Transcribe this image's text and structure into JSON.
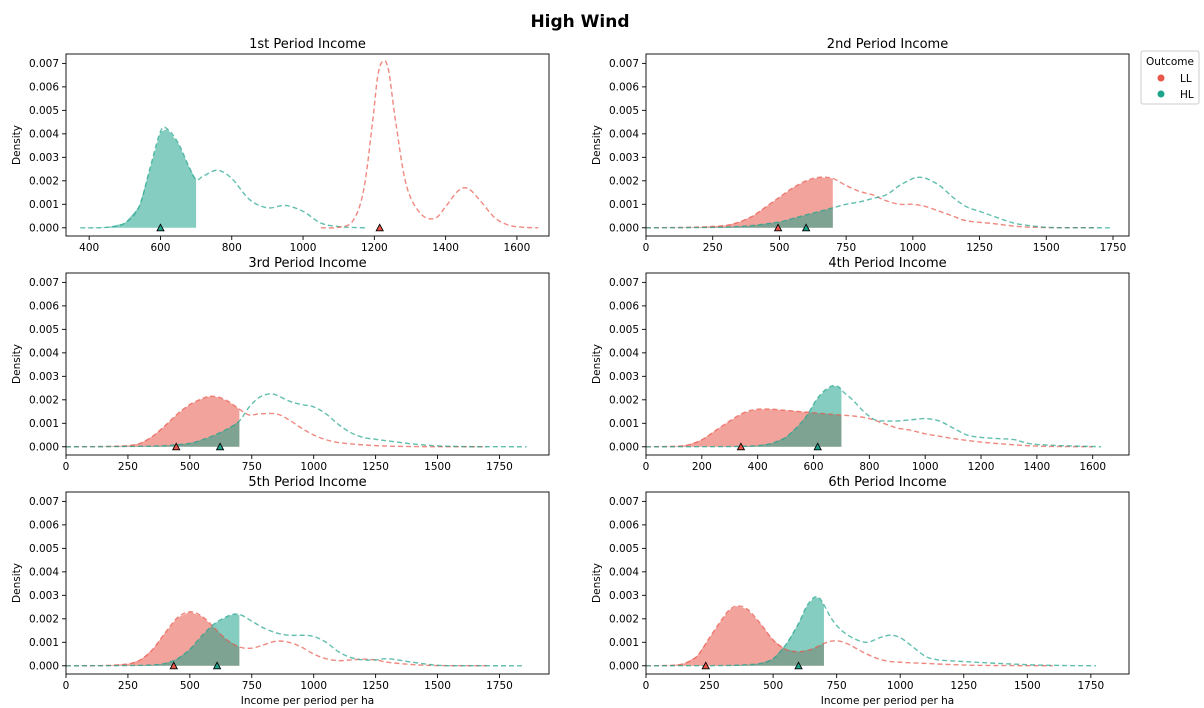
{
  "title": "High Wind",
  "legend": {
    "title": "Outcome",
    "placement": "outside upper-right",
    "items": [
      {
        "label": "LL",
        "color": "#e8574a"
      },
      {
        "label": "HL",
        "color": "#1fa48c"
      }
    ]
  },
  "colors": {
    "LL": "#e8574a",
    "HL": "#1fa48c"
  },
  "chart_data": [
    {
      "type": "area",
      "title": "1st Period Income",
      "xlabel": "",
      "ylabel": "Density",
      "xlim": [
        335,
        1690
      ],
      "ylim": [
        -0.00035,
        0.0074
      ],
      "xticks": [
        400,
        600,
        800,
        1000,
        1200,
        1400,
        1600
      ],
      "yticks": [
        "0.000",
        "0.001",
        "0.002",
        "0.003",
        "0.004",
        "0.005",
        "0.006",
        "0.007"
      ],
      "fill_below": 700,
      "series": [
        {
          "name": "HL",
          "x": [
            375,
            450,
            500,
            540,
            570,
            600,
            620,
            650,
            680,
            700,
            720,
            760,
            800,
            850,
            900,
            950,
            1000,
            1050,
            1100,
            1150,
            1180
          ],
          "y": [
            0,
            2e-05,
            0.0002,
            0.0009,
            0.0025,
            0.0041,
            0.0042,
            0.0036,
            0.0026,
            0.00205,
            0.0022,
            0.00245,
            0.0021,
            0.0012,
            0.00085,
            0.00095,
            0.0007,
            0.0002,
            5e-05,
            1e-05,
            0
          ],
          "marker_x": 600
        },
        {
          "name": "LL",
          "x": [
            1050,
            1100,
            1140,
            1170,
            1195,
            1210,
            1225,
            1240,
            1260,
            1290,
            1330,
            1370,
            1400,
            1430,
            1450,
            1470,
            1500,
            1540,
            1580,
            1620,
            1660
          ],
          "y": [
            0,
            2e-05,
            0.0003,
            0.0016,
            0.0045,
            0.0065,
            0.0071,
            0.0067,
            0.0045,
            0.0018,
            0.0006,
            0.0004,
            0.0009,
            0.0015,
            0.0017,
            0.0016,
            0.0011,
            0.0004,
            0.0001,
            2e-05,
            0
          ],
          "marker_x": 1215
        }
      ]
    },
    {
      "type": "area",
      "title": "2nd Period Income",
      "xlabel": "",
      "ylabel": "Density",
      "xlim": [
        0,
        1810
      ],
      "ylim": [
        -0.00035,
        0.0074
      ],
      "xticks": [
        0,
        250,
        500,
        750,
        1000,
        1250,
        1500,
        1750
      ],
      "yticks": [
        "0.000",
        "0.001",
        "0.002",
        "0.003",
        "0.004",
        "0.005",
        "0.006",
        "0.007"
      ],
      "fill_below": 700,
      "series": [
        {
          "name": "LL",
          "x": [
            0,
            100,
            200,
            300,
            350,
            400,
            450,
            500,
            550,
            600,
            650,
            700,
            750,
            800,
            850,
            900,
            950,
            1000,
            1050,
            1100,
            1150,
            1200,
            1300,
            1400,
            1500,
            1600,
            1680
          ],
          "y": [
            0,
            1e-05,
            3e-05,
            0.0001,
            0.00025,
            0.0005,
            0.0009,
            0.0013,
            0.0017,
            0.002,
            0.00215,
            0.0021,
            0.0018,
            0.00155,
            0.0014,
            0.00115,
            0.001,
            0.001,
            0.0009,
            0.0007,
            0.0005,
            0.0003,
            0.00018,
            5e-05,
            1e-05,
            5e-06,
            0
          ],
          "marker_x": 495
        },
        {
          "name": "HL",
          "x": [
            0,
            200,
            300,
            400,
            500,
            550,
            600,
            650,
            700,
            750,
            800,
            850,
            900,
            950,
            1000,
            1020,
            1050,
            1100,
            1150,
            1200,
            1250,
            1300,
            1350,
            1400,
            1500,
            1600,
            1740
          ],
          "y": [
            0,
            1e-05,
            3e-05,
            0.0001,
            0.00025,
            0.0004,
            0.00055,
            0.0007,
            0.00085,
            0.001,
            0.0011,
            0.00125,
            0.0014,
            0.0018,
            0.0021,
            0.00215,
            0.0021,
            0.0018,
            0.0013,
            0.0009,
            0.0007,
            0.0005,
            0.0003,
            0.00015,
            2e-05,
            5e-06,
            0
          ],
          "marker_x": 600
        }
      ]
    },
    {
      "type": "area",
      "title": "3rd Period Income",
      "xlabel": "",
      "ylabel": "Density",
      "xlim": [
        0,
        1950
      ],
      "ylim": [
        -0.00035,
        0.0074
      ],
      "xticks": [
        0,
        250,
        500,
        750,
        1000,
        1250,
        1500,
        1750
      ],
      "yticks": [
        "0.000",
        "0.001",
        "0.002",
        "0.003",
        "0.004",
        "0.005",
        "0.006",
        "0.007"
      ],
      "fill_below": 700,
      "series": [
        {
          "name": "LL",
          "x": [
            0,
            150,
            250,
            300,
            350,
            400,
            450,
            500,
            550,
            580,
            620,
            660,
            700,
            740,
            780,
            850,
            900,
            950,
            1000,
            1050,
            1100,
            1200,
            1300,
            1400,
            1500,
            1600,
            1700
          ],
          "y": [
            0,
            1e-05,
            5e-05,
            0.00015,
            0.00045,
            0.0009,
            0.0014,
            0.0018,
            0.00205,
            0.00215,
            0.0021,
            0.0019,
            0.0016,
            0.00135,
            0.0014,
            0.0014,
            0.00115,
            0.0008,
            0.0005,
            0.0003,
            0.00018,
            8e-05,
            3e-05,
            1e-05,
            5e-06,
            2e-06,
            0
          ],
          "marker_x": 445
        },
        {
          "name": "HL",
          "x": [
            0,
            200,
            300,
            400,
            500,
            550,
            600,
            650,
            700,
            740,
            780,
            820,
            850,
            900,
            950,
            1000,
            1050,
            1100,
            1150,
            1200,
            1250,
            1300,
            1400,
            1500,
            1600,
            1700,
            1860
          ],
          "y": [
            0,
            1e-05,
            2e-05,
            5e-05,
            0.00015,
            0.0003,
            0.0005,
            0.00075,
            0.0011,
            0.0017,
            0.0021,
            0.00225,
            0.0022,
            0.00195,
            0.0018,
            0.0017,
            0.0014,
            0.00095,
            0.0006,
            0.0004,
            0.00032,
            0.00025,
            0.00012,
            4e-05,
            1e-05,
            5e-06,
            0
          ],
          "marker_x": 622
        }
      ]
    },
    {
      "type": "area",
      "title": "4th Period Income",
      "xlabel": "",
      "ylabel": "Density",
      "xlim": [
        0,
        1730
      ],
      "ylim": [
        -0.00035,
        0.0074
      ],
      "xticks": [
        0,
        200,
        400,
        600,
        800,
        1000,
        1200,
        1400,
        1600
      ],
      "yticks": [
        "0.000",
        "0.001",
        "0.002",
        "0.003",
        "0.004",
        "0.005",
        "0.006",
        "0.007"
      ],
      "fill_below": 700,
      "series": [
        {
          "name": "LL",
          "x": [
            0,
            100,
            150,
            200,
            250,
            300,
            350,
            400,
            450,
            500,
            550,
            600,
            650,
            700,
            750,
            800,
            850,
            900,
            950,
            1000,
            1050,
            1100,
            1200,
            1300,
            1400,
            1500,
            1600
          ],
          "y": [
            0,
            2e-05,
            8e-05,
            0.0003,
            0.0007,
            0.0011,
            0.00145,
            0.0016,
            0.0016,
            0.00155,
            0.0015,
            0.00145,
            0.0014,
            0.00135,
            0.0013,
            0.0012,
            0.001,
            0.0008,
            0.0007,
            0.00055,
            0.00045,
            0.00035,
            0.0002,
            0.0001,
            3e-05,
            1e-05,
            0
          ],
          "marker_x": 340
        },
        {
          "name": "HL",
          "x": [
            0,
            300,
            400,
            450,
            500,
            550,
            580,
            610,
            640,
            670,
            690,
            710,
            740,
            780,
            820,
            860,
            900,
            950,
            1000,
            1050,
            1100,
            1150,
            1200,
            1260,
            1320,
            1400,
            1630
          ],
          "y": [
            0,
            1e-05,
            5e-05,
            0.00015,
            0.0004,
            0.00095,
            0.0014,
            0.002,
            0.0024,
            0.0026,
            0.00255,
            0.0023,
            0.002,
            0.0015,
            0.00115,
            0.0011,
            0.0011,
            0.00115,
            0.0012,
            0.0011,
            0.0008,
            0.0005,
            0.0004,
            0.00035,
            0.0003,
            0.0001,
            0
          ],
          "marker_x": 615
        }
      ]
    },
    {
      "type": "area",
      "title": "5th Period Income",
      "xlabel": "",
      "ylabel": "Density",
      "xlim": [
        0,
        1950
      ],
      "ylim": [
        -0.00035,
        0.0074
      ],
      "xticks": [
        0,
        250,
        500,
        750,
        1000,
        1250,
        1500,
        1750
      ],
      "yticks": [
        "0.000",
        "0.001",
        "0.002",
        "0.003",
        "0.004",
        "0.005",
        "0.006",
        "0.007"
      ],
      "fill_below": 700,
      "series": [
        {
          "name": "LL",
          "x": [
            0,
            150,
            250,
            300,
            350,
            400,
            450,
            500,
            550,
            600,
            650,
            700,
            750,
            800,
            850,
            900,
            950,
            1000,
            1050,
            1100,
            1150,
            1200,
            1250,
            1300,
            1400,
            1500,
            1700
          ],
          "y": [
            0,
            1e-05,
            8e-05,
            0.00025,
            0.0007,
            0.0014,
            0.00205,
            0.0023,
            0.0021,
            0.0016,
            0.0011,
            0.0008,
            0.00075,
            0.0009,
            0.00105,
            0.001,
            0.0008,
            0.0005,
            0.0003,
            0.00022,
            0.00025,
            0.00028,
            0.00025,
            0.00015,
            5e-05,
            1e-05,
            0
          ],
          "marker_x": 435
        },
        {
          "name": "HL",
          "x": [
            0,
            250,
            350,
            400,
            450,
            500,
            550,
            600,
            650,
            680,
            710,
            750,
            800,
            850,
            900,
            950,
            1000,
            1050,
            1100,
            1150,
            1200,
            1250,
            1300,
            1400,
            1500,
            1600,
            1850
          ],
          "y": [
            0,
            1e-05,
            4e-05,
            0.0001,
            0.0003,
            0.0007,
            0.0013,
            0.0018,
            0.0021,
            0.0022,
            0.00215,
            0.0019,
            0.0016,
            0.0014,
            0.0013,
            0.0013,
            0.00125,
            0.001,
            0.0006,
            0.00035,
            0.00025,
            0.00025,
            0.0003,
            0.00015,
            2e-05,
            5e-06,
            0
          ],
          "marker_x": 610
        }
      ]
    },
    {
      "type": "area",
      "title": "6th Period Income",
      "xlabel": "Income per period per ha",
      "ylabel": "Density",
      "xlim": [
        0,
        1900
      ],
      "ylim": [
        -0.00035,
        0.0074
      ],
      "xticks": [
        0,
        250,
        500,
        750,
        1000,
        1250,
        1500,
        1750
      ],
      "yticks": [
        "0.000",
        "0.001",
        "0.002",
        "0.003",
        "0.004",
        "0.005",
        "0.006",
        "0.007"
      ],
      "fill_below": 700,
      "series": [
        {
          "name": "LL",
          "x": [
            0,
            100,
            150,
            200,
            250,
            300,
            330,
            360,
            400,
            450,
            500,
            550,
            600,
            650,
            700,
            730,
            760,
            800,
            850,
            900,
            950,
            1000,
            1100,
            1200,
            1300,
            1400,
            1600
          ],
          "y": [
            0,
            2e-05,
            0.0001,
            0.0004,
            0.0012,
            0.002,
            0.0024,
            0.00255,
            0.0024,
            0.0018,
            0.0011,
            0.0007,
            0.0006,
            0.0007,
            0.00095,
            0.00105,
            0.00105,
            0.0009,
            0.0006,
            0.00035,
            0.0002,
            0.00015,
            0.0001,
            5e-05,
            2e-05,
            1e-05,
            0
          ],
          "marker_x": 235
        },
        {
          "name": "HL",
          "x": [
            0,
            300,
            400,
            450,
            500,
            550,
            600,
            630,
            660,
            680,
            700,
            730,
            770,
            820,
            870,
            920,
            960,
            1000,
            1050,
            1100,
            1150,
            1250,
            1350,
            1450,
            1550,
            1650,
            1770
          ],
          "y": [
            0,
            1e-05,
            5e-05,
            0.0001,
            0.0003,
            0.0009,
            0.0018,
            0.0025,
            0.0029,
            0.0029,
            0.0026,
            0.002,
            0.0015,
            0.00115,
            0.001,
            0.0012,
            0.0013,
            0.0012,
            0.0008,
            0.0004,
            0.00025,
            0.00018,
            0.00012,
            7e-05,
            3e-05,
            1e-05,
            0
          ],
          "marker_x": 600
        }
      ]
    }
  ]
}
